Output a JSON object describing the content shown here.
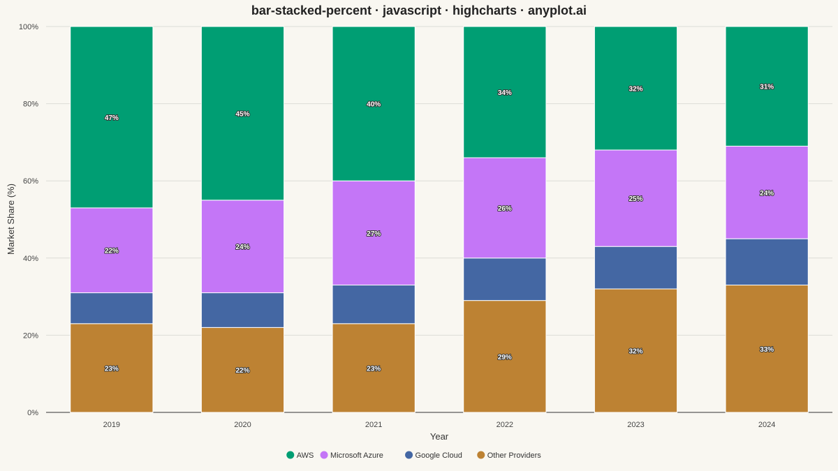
{
  "chart_data": {
    "type": "bar",
    "stacking": "percent",
    "title": "bar-stacked-percent · javascript · highcharts · anyplot.ai",
    "xlabel": "Year",
    "ylabel": "Market Share (%)",
    "ylim": [
      0,
      100
    ],
    "yticks": [
      "0%",
      "20%",
      "40%",
      "60%",
      "80%",
      "100%"
    ],
    "grid": true,
    "legend_position": "bottom-center",
    "categories": [
      "2019",
      "2020",
      "2021",
      "2022",
      "2023",
      "2024"
    ],
    "series": [
      {
        "name": "Other Providers",
        "color": "#bd8233",
        "values": [
          23,
          22,
          23,
          29,
          32,
          33
        ],
        "labels": [
          "23%",
          "22%",
          "23%",
          "29%",
          "32%",
          "33%"
        ]
      },
      {
        "name": "Google Cloud",
        "color": "#4467a3",
        "values": [
          8,
          9,
          10,
          11,
          11,
          12
        ],
        "labels": null
      },
      {
        "name": "Microsoft Azure",
        "color": "#c476f7",
        "values": [
          22,
          24,
          27,
          26,
          25,
          24
        ],
        "labels": [
          "22%",
          "24%",
          "27%",
          "26%",
          "25%",
          "24%"
        ]
      },
      {
        "name": "AWS",
        "color": "#009e73",
        "values": [
          47,
          45,
          40,
          34,
          32,
          31
        ],
        "labels": [
          "47%",
          "45%",
          "40%",
          "34%",
          "32%",
          "31%"
        ]
      }
    ],
    "legend_order": [
      "AWS",
      "Microsoft Azure",
      "Google Cloud",
      "Other Providers"
    ]
  }
}
